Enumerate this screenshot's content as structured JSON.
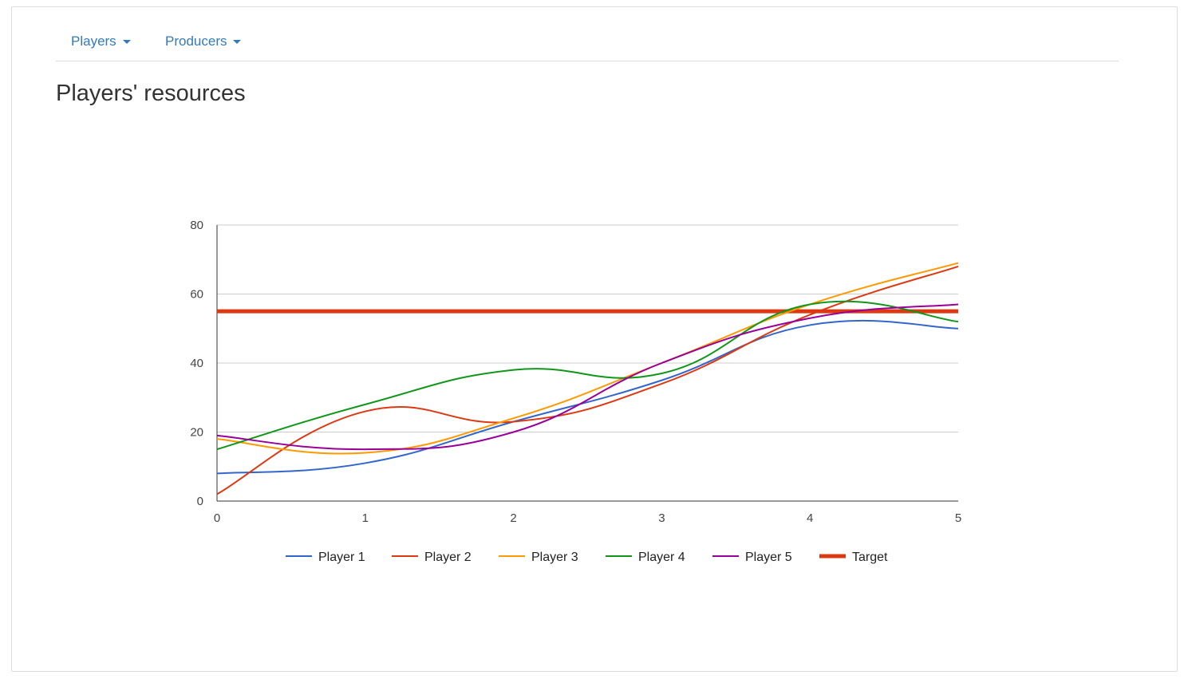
{
  "nav": {
    "players_label": "Players",
    "producers_label": "Producers"
  },
  "page": {
    "title": "Players' resources"
  },
  "chart_data": {
    "type": "line",
    "title": "",
    "xlabel": "",
    "ylabel": "",
    "x": [
      0,
      1,
      2,
      3,
      4,
      5
    ],
    "xlim": [
      0,
      5
    ],
    "ylim": [
      0,
      80
    ],
    "x_ticks": [
      "0",
      "1",
      "2",
      "3",
      "4",
      "5"
    ],
    "y_ticks": [
      "0",
      "20",
      "40",
      "60",
      "80"
    ],
    "grid": true,
    "legend_position": "bottom",
    "curve": "smooth",
    "series": [
      {
        "name": "Player 1",
        "color": "#3366cc",
        "values": [
          8,
          11,
          23,
          35,
          51,
          50
        ]
      },
      {
        "name": "Player 2",
        "color": "#dc3912",
        "values": [
          2,
          26,
          23,
          34,
          54,
          68
        ]
      },
      {
        "name": "Player 3",
        "color": "#ff9900",
        "values": [
          18,
          14,
          24,
          40,
          57,
          69
        ]
      },
      {
        "name": "Player 4",
        "color": "#109618",
        "values": [
          15,
          28,
          38,
          37,
          57,
          52
        ]
      },
      {
        "name": "Player 5",
        "color": "#990099",
        "values": [
          19,
          15,
          20,
          40,
          53,
          57
        ]
      },
      {
        "name": "Target",
        "color": "#dc3912",
        "values": [
          55,
          55,
          55,
          55,
          55,
          55
        ],
        "style": "thick"
      }
    ]
  }
}
